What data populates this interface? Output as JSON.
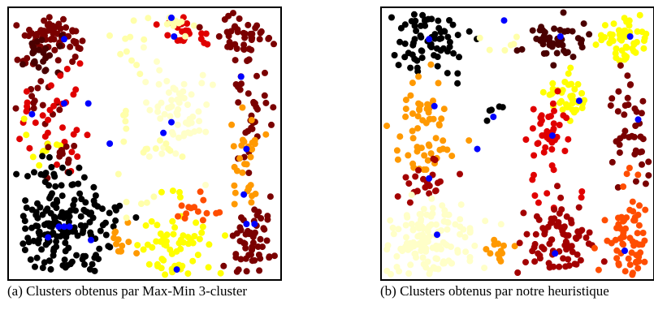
{
  "palette": {
    "black": "#000000",
    "dark_brown": "#4a0000",
    "maroon": "#7a0000",
    "dark_red": "#a30000",
    "red": "#e00000",
    "orange_red": "#ff4d00",
    "orange": "#ff9900",
    "yellow": "#ffff00",
    "light_yellow": "#ffffaa",
    "cream": "#ffffc8",
    "centroid_blue": "#0000ff"
  },
  "chart_data": [
    {
      "type": "scatter",
      "title": "",
      "xlabel": "",
      "ylabel": "",
      "xlim": [
        0,
        100
      ],
      "ylim": [
        0,
        100
      ],
      "grid": false,
      "legend": "none",
      "caption": "(a) Clusters obtenus par Max-Min 3-cluster",
      "point_groups": [
        {
          "color": "maroon",
          "cx": 15,
          "cy": 89,
          "sx": 6,
          "sy": 5,
          "n": 70
        },
        {
          "color": "dark_brown",
          "cx": 12,
          "cy": 84,
          "sx": 5,
          "sy": 5,
          "n": 25
        },
        {
          "color": "light_yellow",
          "cx": 44,
          "cy": 86,
          "sx": 4,
          "sy": 5,
          "n": 10
        },
        {
          "color": "red",
          "cx": 65,
          "cy": 91,
          "sx": 5,
          "sy": 3,
          "n": 25
        },
        {
          "color": "light_yellow",
          "cx": 60,
          "cy": 94,
          "sx": 4,
          "sy": 2,
          "n": 10
        },
        {
          "color": "maroon",
          "cx": 88,
          "cy": 90,
          "sx": 5,
          "sy": 4,
          "n": 45
        },
        {
          "color": "maroon",
          "cx": 9,
          "cy": 66,
          "sx": 6,
          "sy": 4,
          "n": 15
        },
        {
          "color": "red",
          "cx": 20,
          "cy": 60,
          "sx": 5,
          "sy": 8,
          "n": 25
        },
        {
          "color": "red",
          "cx": 5,
          "cy": 60,
          "sx": 2,
          "sy": 6,
          "n": 8
        },
        {
          "color": "yellow",
          "cx": 10,
          "cy": 50,
          "sx": 5,
          "sy": 5,
          "n": 10
        },
        {
          "color": "maroon",
          "cx": 20,
          "cy": 45,
          "sx": 5,
          "sy": 3,
          "n": 12
        },
        {
          "color": "light_yellow",
          "cx": 40,
          "cy": 60,
          "sx": 3,
          "sy": 3,
          "n": 5
        },
        {
          "color": "cream",
          "cx": 62,
          "cy": 62,
          "sx": 6,
          "sy": 9,
          "n": 60
        },
        {
          "color": "light_yellow",
          "cx": 55,
          "cy": 48,
          "sx": 5,
          "sy": 4,
          "n": 10
        },
        {
          "color": "maroon",
          "cx": 91,
          "cy": 65,
          "sx": 3,
          "sy": 8,
          "n": 30
        },
        {
          "color": "orange",
          "cx": 88,
          "cy": 40,
          "sx": 4,
          "sy": 10,
          "n": 30
        },
        {
          "color": "black",
          "cx": 15,
          "cy": 38,
          "sx": 7,
          "sy": 3,
          "n": 20
        },
        {
          "color": "black",
          "cx": 20,
          "cy": 17,
          "sx": 9,
          "sy": 8,
          "n": 160
        },
        {
          "color": "orange",
          "cx": 42,
          "cy": 13,
          "sx": 3,
          "sy": 3,
          "n": 12
        },
        {
          "color": "yellow",
          "cx": 62,
          "cy": 12,
          "sx": 6,
          "sy": 8,
          "n": 60
        },
        {
          "color": "orange_red",
          "cx": 70,
          "cy": 25,
          "sx": 5,
          "sy": 3,
          "n": 14
        },
        {
          "color": "maroon",
          "cx": 91,
          "cy": 14,
          "sx": 4,
          "sy": 8,
          "n": 55
        },
        {
          "color": "light_yellow",
          "cx": 45,
          "cy": 30,
          "sx": 6,
          "sy": 5,
          "n": 6
        }
      ],
      "centroids": [
        {
          "x": 20,
          "y": 89
        },
        {
          "x": 60,
          "y": 97
        },
        {
          "x": 61,
          "y": 90
        },
        {
          "x": 86,
          "y": 75
        },
        {
          "x": 20,
          "y": 65
        },
        {
          "x": 29,
          "y": 65
        },
        {
          "x": 8,
          "y": 61
        },
        {
          "x": 60,
          "y": 58
        },
        {
          "x": 57,
          "y": 54
        },
        {
          "x": 37,
          "y": 50
        },
        {
          "x": 88,
          "y": 48
        },
        {
          "x": 87,
          "y": 31
        },
        {
          "x": 18,
          "y": 19
        },
        {
          "x": 20,
          "y": 19
        },
        {
          "x": 22,
          "y": 19
        },
        {
          "x": 14,
          "y": 15
        },
        {
          "x": 30,
          "y": 14
        },
        {
          "x": 88,
          "y": 20
        },
        {
          "x": 91,
          "y": 20
        },
        {
          "x": 62,
          "y": 3
        }
      ]
    },
    {
      "type": "scatter",
      "title": "",
      "xlabel": "",
      "ylabel": "",
      "xlim": [
        0,
        100
      ],
      "ylim": [
        0,
        100
      ],
      "grid": false,
      "legend": "none",
      "caption": "(b) Clusters obtenus par notre heuristique",
      "point_groups": [
        {
          "color": "black",
          "cx": 17,
          "cy": 88,
          "sx": 7,
          "sy": 6,
          "n": 70
        },
        {
          "color": "light_yellow",
          "cx": 45,
          "cy": 88,
          "sx": 3,
          "sy": 5,
          "n": 6
        },
        {
          "color": "dark_brown",
          "cx": 65,
          "cy": 89,
          "sx": 6,
          "sy": 4,
          "n": 45
        },
        {
          "color": "yellow",
          "cx": 90,
          "cy": 89,
          "sx": 5,
          "sy": 5,
          "n": 50
        },
        {
          "color": "orange",
          "cx": 15,
          "cy": 60,
          "sx": 6,
          "sy": 9,
          "n": 60
        },
        {
          "color": "black",
          "cx": 42,
          "cy": 61,
          "sx": 3,
          "sy": 2,
          "n": 5
        },
        {
          "color": "yellow",
          "cx": 68,
          "cy": 68,
          "sx": 4,
          "sy": 5,
          "n": 40
        },
        {
          "color": "red",
          "cx": 62,
          "cy": 55,
          "sx": 4,
          "sy": 5,
          "n": 35
        },
        {
          "color": "maroon",
          "cx": 92,
          "cy": 55,
          "sx": 4,
          "sy": 10,
          "n": 40
        },
        {
          "color": "dark_red",
          "cx": 15,
          "cy": 37,
          "sx": 5,
          "sy": 4,
          "n": 22
        },
        {
          "color": "red",
          "cx": 65,
          "cy": 33,
          "sx": 6,
          "sy": 4,
          "n": 10
        },
        {
          "color": "orange_red",
          "cx": 90,
          "cy": 36,
          "sx": 3,
          "sy": 3,
          "n": 4
        },
        {
          "color": "cream",
          "cx": 17,
          "cy": 13,
          "sx": 10,
          "sy": 7,
          "n": 130
        },
        {
          "color": "orange",
          "cx": 43,
          "cy": 11,
          "sx": 3,
          "sy": 3,
          "n": 12
        },
        {
          "color": "dark_red",
          "cx": 65,
          "cy": 14,
          "sx": 7,
          "sy": 8,
          "n": 80
        },
        {
          "color": "orange_red",
          "cx": 91,
          "cy": 14,
          "sx": 4,
          "sy": 8,
          "n": 60
        }
      ],
      "centroids": [
        {
          "x": 17,
          "y": 89
        },
        {
          "x": 45,
          "y": 96
        },
        {
          "x": 66,
          "y": 90
        },
        {
          "x": 92,
          "y": 90
        },
        {
          "x": 19,
          "y": 64
        },
        {
          "x": 41,
          "y": 60
        },
        {
          "x": 63,
          "y": 53
        },
        {
          "x": 73,
          "y": 66
        },
        {
          "x": 95,
          "y": 59
        },
        {
          "x": 35,
          "y": 48
        },
        {
          "x": 17,
          "y": 37
        },
        {
          "x": 20,
          "y": 16
        },
        {
          "x": 64,
          "y": 9
        },
        {
          "x": 90,
          "y": 10
        }
      ]
    }
  ]
}
